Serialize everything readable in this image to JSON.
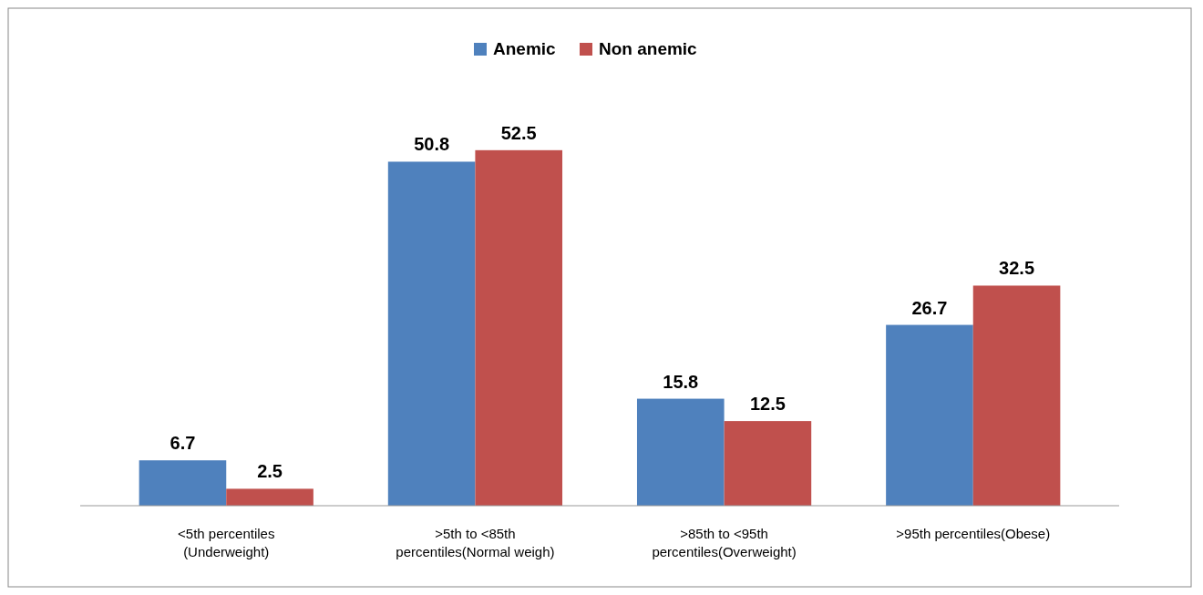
{
  "chart_data": {
    "type": "bar",
    "categories": [
      "<5th percentiles (Underweight)",
      ">5th to <85th percentiles(Normal weigh)",
      ">85th to <95th percentiles(Overweight)",
      ">95th percentiles(Obese)"
    ],
    "series": [
      {
        "name": "Anemic",
        "color": "#4f81bd",
        "values": [
          6.7,
          50.8,
          15.8,
          26.7
        ]
      },
      {
        "name": "Non anemic",
        "color": "#c0504d",
        "values": [
          2.5,
          52.5,
          12.5,
          32.5
        ]
      }
    ],
    "data_labels": true,
    "legend": "top"
  }
}
